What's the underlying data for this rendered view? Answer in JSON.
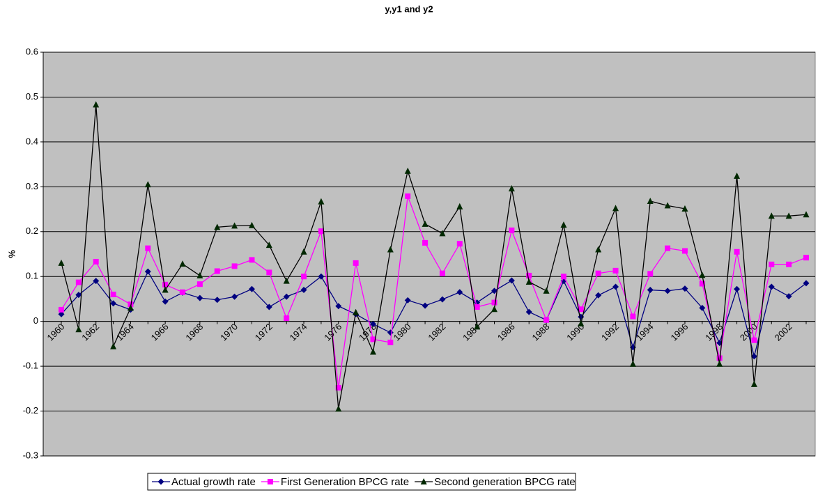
{
  "chart_data": {
    "type": "line",
    "title": "y,y1 and y2",
    "y_label": "%",
    "categories": [
      "1960",
      null,
      "1962",
      null,
      "1964",
      null,
      "1966",
      null,
      "1968",
      null,
      "1970",
      null,
      "1972",
      null,
      "1974",
      null,
      "1976",
      null,
      "1978",
      null,
      "1980",
      null,
      "1982",
      null,
      "1984",
      null,
      "1986",
      null,
      "1988",
      null,
      "1990",
      null,
      "1992",
      null,
      "1994",
      null,
      "1996",
      null,
      "1998",
      null,
      "2000",
      null,
      "2002",
      null
    ],
    "series": [
      {
        "name": "Actual growth rate",
        "color": "#000080",
        "marker": "diamond",
        "values": [
          0.016,
          0.059,
          0.09,
          0.04,
          0.026,
          0.111,
          0.044,
          0.064,
          0.052,
          0.048,
          0.055,
          0.072,
          0.032,
          0.055,
          0.07,
          0.1,
          0.034,
          0.016,
          -0.006,
          -0.025,
          0.047,
          0.035,
          0.049,
          0.065,
          0.042,
          0.068,
          0.091,
          0.021,
          0.003,
          0.09,
          0.01,
          0.058,
          0.077,
          -0.058,
          0.07,
          0.068,
          0.073,
          0.03,
          -0.048,
          0.072,
          -0.078,
          0.077,
          0.056,
          0.085
        ]
      },
      {
        "name": "First Generation BPCG rate",
        "color": "#ff00ff",
        "marker": "square",
        "values": [
          0.026,
          0.087,
          0.133,
          0.06,
          0.038,
          0.163,
          0.082,
          0.065,
          0.083,
          0.112,
          0.123,
          0.137,
          0.109,
          0.007,
          0.1,
          0.201,
          -0.148,
          0.13,
          -0.04,
          -0.047,
          0.279,
          0.175,
          0.107,
          0.173,
          0.032,
          0.042,
          0.203,
          0.102,
          0.003,
          0.1,
          0.027,
          0.107,
          0.113,
          0.011,
          0.106,
          0.163,
          0.157,
          0.084,
          -0.082,
          0.155,
          -0.042,
          0.127,
          0.127,
          0.142
        ]
      },
      {
        "name": "Second generation BPCG rate",
        "color": "#002800",
        "marker": "triangle",
        "values": [
          0.13,
          -0.018,
          0.483,
          -0.056,
          0.03,
          0.305,
          0.07,
          0.128,
          0.102,
          0.21,
          0.213,
          0.214,
          0.17,
          0.09,
          0.155,
          0.267,
          -0.195,
          0.02,
          -0.068,
          0.16,
          0.335,
          0.217,
          0.196,
          0.256,
          -0.012,
          0.027,
          0.296,
          0.088,
          0.068,
          0.215,
          -0.005,
          0.16,
          0.252,
          -0.095,
          0.268,
          0.258,
          0.251,
          0.103,
          -0.095,
          0.324,
          -0.14,
          0.235,
          0.235,
          0.238
        ]
      }
    ],
    "ylim": [
      -0.3,
      0.6
    ],
    "yticks": [
      -0.3,
      -0.2,
      -0.1,
      0,
      0.1,
      0.2,
      0.3,
      0.4,
      0.5,
      0.6
    ],
    "grid": true,
    "legend": "bottom"
  }
}
